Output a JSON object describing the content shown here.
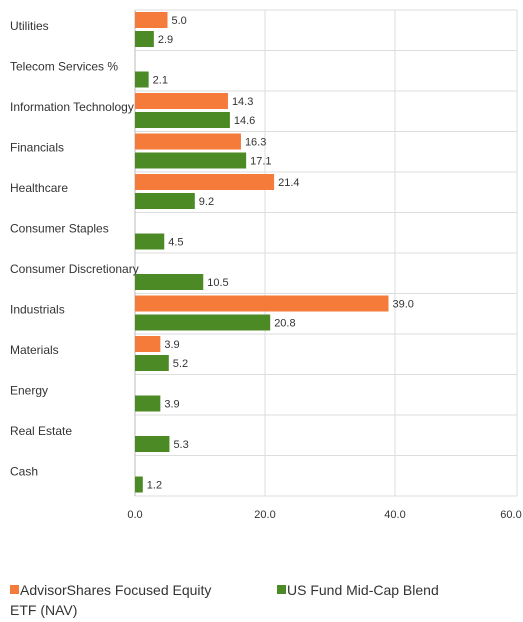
{
  "chart_data": {
    "type": "bar",
    "orientation": "horizontal",
    "categories": [
      "Utilities",
      "Telecom Services %",
      "Information Technology",
      "Financials",
      "Healthcare",
      "Consumer Staples",
      "Consumer Discretionary",
      "Industrials",
      "Materials",
      "Energy",
      "Real Estate",
      "Cash"
    ],
    "series": [
      {
        "name": "AdvisorShares Focused Equity ETF (NAV)",
        "color": "#f47b3a",
        "values": [
          5.0,
          null,
          14.3,
          16.3,
          21.4,
          null,
          null,
          39.0,
          3.9,
          null,
          null,
          null
        ]
      },
      {
        "name": "US Fund Mid-Cap Blend",
        "color": "#4c8a26",
        "values": [
          2.9,
          2.1,
          14.6,
          17.1,
          9.2,
          4.5,
          10.5,
          20.8,
          5.2,
          3.9,
          5.3,
          1.2
        ]
      }
    ],
    "xlim": [
      0,
      60
    ],
    "xticks": [
      "0.0",
      "20.0",
      "40.0",
      "60.0"
    ],
    "grid": true,
    "legend_position": "bottom"
  }
}
